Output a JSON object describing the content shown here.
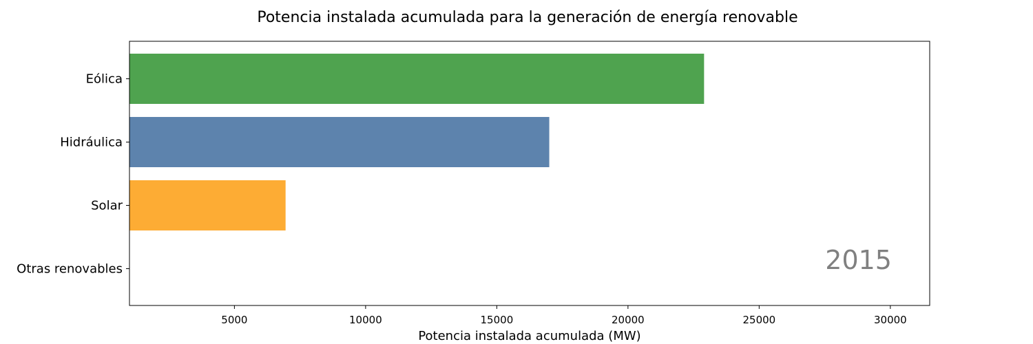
{
  "chart_data": {
    "type": "bar",
    "orientation": "horizontal",
    "title": "Potencia instalada acumulada para la generación de energía renovable",
    "xlabel": "Potencia instalada acumulada (MW)",
    "ylabel": "",
    "annotation": "2015",
    "xlim": [
      1000,
      31500
    ],
    "xticks": [
      5000,
      10000,
      15000,
      20000,
      25000,
      30000
    ],
    "grid": false,
    "categories": [
      "Eólica",
      "Hidráulica",
      "Solar",
      "Otras renovables"
    ],
    "values": [
      22900,
      17000,
      6950,
      0
    ],
    "colors": [
      "#4fa34f",
      "#5d83ad",
      "#fdac34",
      "#d9d9d9"
    ]
  }
}
